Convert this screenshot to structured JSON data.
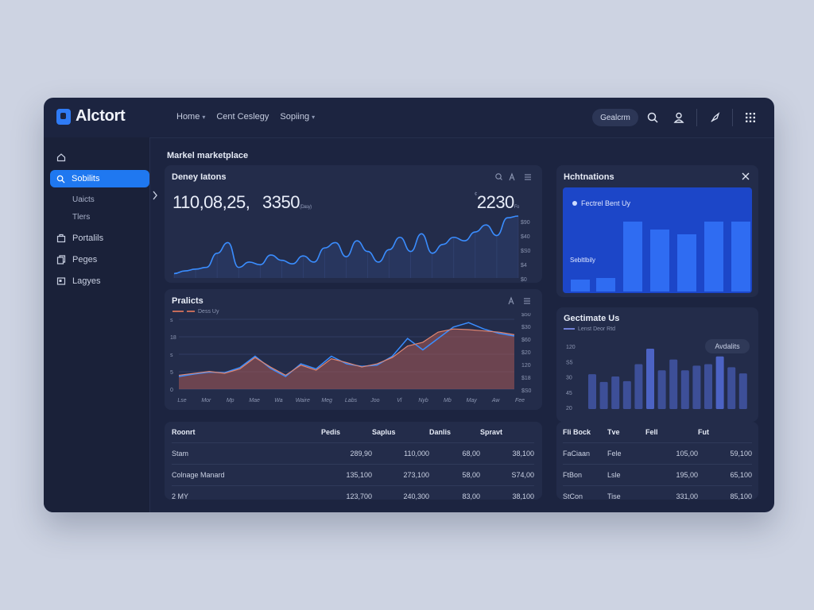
{
  "app": {
    "brand": "Alctort"
  },
  "nav": {
    "items": [
      {
        "label": "Home",
        "has_caret": true
      },
      {
        "label": "Cent Ceslegy",
        "has_caret": false
      },
      {
        "label": "Sopiing",
        "has_caret": true
      }
    ]
  },
  "toolbar": {
    "pill_label": "Gealcrm",
    "icons": [
      "search-icon",
      "user-icon",
      "rocket-icon",
      "apps-grid-icon"
    ]
  },
  "sidebar": {
    "items": [
      {
        "label": "",
        "icon": "home-icon"
      },
      {
        "label": "Sobilits",
        "icon": "search-icon",
        "active": true
      },
      {
        "label": "Uaicts",
        "sub": true
      },
      {
        "label": "Tlers",
        "sub": true
      },
      {
        "label": "Portalils",
        "icon": "portfolio-icon"
      },
      {
        "label": "Peges",
        "icon": "pages-icon"
      },
      {
        "label": "Lagyes",
        "icon": "layers-icon"
      }
    ]
  },
  "page": {
    "title": "Markel marketplace"
  },
  "card1": {
    "title": "Deney Iatons",
    "value_a": "110,08,25,",
    "value_b": "3350",
    "value_b_sub": "(Dasy)",
    "value_c": "2230",
    "value_c_prefix": "¢",
    "value_c_sub": "Fo",
    "icons": [
      "search-icon",
      "text-icon",
      "menu-icon"
    ]
  },
  "card2": {
    "title": "Hchtnations",
    "chip": "Fectrel Bent Uy",
    "label": "Sebltlbily",
    "close_icon": "close-icon"
  },
  "card3": {
    "title": "Pralicts",
    "legend": "Dess Uy",
    "icons": [
      "text-icon",
      "menu-icon"
    ]
  },
  "card4": {
    "title": "Gectimate Us",
    "legend": "Lenst Deor Rtd",
    "badge": "Avdalits"
  },
  "table_left": {
    "headers": [
      "Roonrt",
      "Pedis",
      "Saplus",
      "Danlis",
      "Spravt"
    ],
    "rows": [
      [
        "Stam",
        "289,90",
        "110,000",
        "68,00",
        "38,100"
      ],
      [
        "Colnage Manard",
        "135,100",
        "273,100",
        "58,00",
        "S74,00"
      ],
      [
        "2 MY",
        "123,700",
        "240,300",
        "83,00",
        "38,100"
      ]
    ],
    "negative_cell": [
      0,
      4
    ]
  },
  "table_right": {
    "headers": [
      "Fli Bock",
      "Tve",
      "Fell",
      "Fut"
    ],
    "rows": [
      [
        "FaCiaan",
        "Fele",
        "105,00",
        "59,100"
      ],
      [
        "FtBon",
        "Lsle",
        "195,00",
        "65,100"
      ],
      [
        "StCon",
        "Tise",
        "331,00",
        "85,100"
      ]
    ]
  },
  "chart_data": [
    {
      "type": "area",
      "name": "top-line",
      "y_ticks": [
        "$90",
        "$40",
        "$S0",
        "$4",
        "$0"
      ],
      "values": [
        5,
        8,
        10,
        12,
        28,
        40,
        12,
        18,
        15,
        26,
        20,
        16,
        25,
        18,
        34,
        40,
        24,
        42,
        30,
        18,
        32,
        46,
        30,
        50,
        28,
        38,
        46,
        42,
        52,
        60,
        48,
        68,
        70
      ]
    },
    {
      "type": "area",
      "name": "products",
      "y_ticks": [
        "$50",
        "$30",
        "$60",
        "$20",
        "120",
        "$18",
        "$S0"
      ],
      "y_ticks_left": [
        "s",
        "18",
        "s",
        "5",
        "0"
      ],
      "x_ticks": [
        "Lse",
        "Mor",
        "Mp",
        "Mae",
        "Wa",
        "Waire",
        "Meg",
        "Labs",
        "Joo",
        "Vl",
        "Nyb",
        "Mb",
        "May",
        "Aw",
        "Fee"
      ],
      "series": [
        {
          "name": "Dess Uy",
          "values": [
            22,
            25,
            28,
            25,
            32,
            50,
            35,
            22,
            38,
            30,
            48,
            42,
            35,
            40,
            50,
            68,
            74,
            90,
            95,
            94,
            92,
            90,
            86
          ]
        },
        {
          "name": "",
          "values": [
            20,
            24,
            27,
            26,
            34,
            52,
            33,
            20,
            40,
            32,
            52,
            40,
            36,
            38,
            52,
            80,
            62,
            80,
            98,
            105,
            95,
            88,
            84
          ]
        }
      ]
    },
    {
      "type": "bar",
      "name": "hchtnations",
      "values": [
        15,
        17,
        88,
        78,
        72,
        88,
        88
      ],
      "ylim": [
        0,
        100
      ]
    },
    {
      "type": "bar",
      "name": "gectimate",
      "y_ticks": [
        "120",
        "S5",
        "30",
        "45",
        "20"
      ],
      "values": [
        45,
        35,
        42,
        36,
        58,
        78,
        50,
        64,
        50,
        56,
        58,
        68,
        54,
        46
      ]
    }
  ]
}
